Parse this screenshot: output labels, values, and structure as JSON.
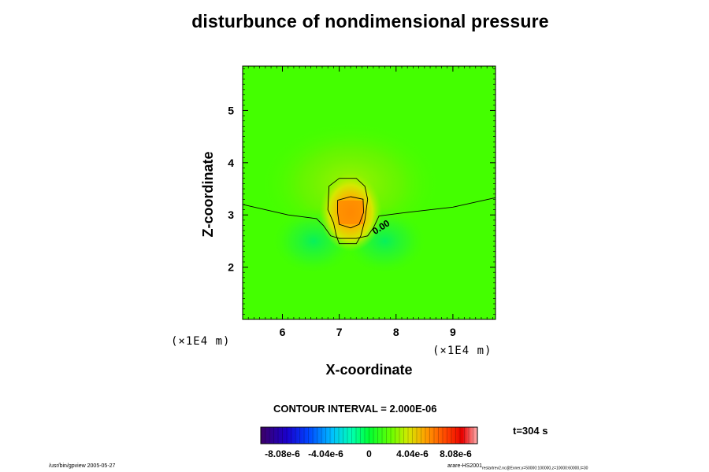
{
  "chart_data": {
    "type": "heatmap",
    "title": "disturbunce of nondimensional pressure",
    "xlabel": "X-coordinate",
    "ylabel": "Z-coordinate",
    "x_unit": "(×1E4 m)",
    "z_unit": "(×1E4 m)",
    "x_ticks": [
      6,
      7,
      8,
      9
    ],
    "y_ticks": [
      2,
      3,
      4,
      5
    ],
    "xlim": [
      5.3,
      9.75
    ],
    "ylim": [
      1.0,
      5.85
    ],
    "contour_interval_text": "CONTOUR INTERVAL = 2.000E-06",
    "contour_label": "0.00",
    "time_text": "t=304 s",
    "colorbar": {
      "min": -1.01e-05,
      "max": 1.01e-05,
      "tick_values": [
        -8.08e-06,
        -4.04e-06,
        0,
        4.04e-06,
        8.08e-06
      ],
      "tick_labels": [
        "-8.08e-6",
        "-4.04e-6",
        "0",
        "4.04e-6",
        "8.08e-6"
      ]
    },
    "field_features": [
      {
        "kind": "positive-peak",
        "x": 7.2,
        "z": 3.05,
        "value": 4.5e-06
      },
      {
        "kind": "negative-lobe",
        "x": 6.55,
        "z": 2.5,
        "value": -1.2e-06
      },
      {
        "kind": "negative-lobe",
        "x": 7.8,
        "z": 2.5,
        "value": -1.2e-06
      },
      {
        "kind": "weak-positive-dome",
        "x": 7.2,
        "z": 3.6,
        "value": 1e-06
      }
    ],
    "contours": [
      {
        "level": 0,
        "points": [
          [
            5.3,
            3.2
          ],
          [
            6.1,
            3.0
          ],
          [
            6.6,
            2.93
          ],
          [
            6.72,
            2.8
          ],
          [
            6.85,
            2.6
          ],
          [
            7.0,
            2.55
          ],
          [
            7.3,
            2.55
          ],
          [
            7.5,
            2.6
          ],
          [
            7.6,
            2.75
          ],
          [
            7.7,
            2.98
          ],
          [
            8.2,
            3.05
          ],
          [
            9.0,
            3.15
          ],
          [
            9.75,
            3.33
          ]
        ]
      },
      {
        "level": 2e-06,
        "points": [
          [
            7.0,
            3.7
          ],
          [
            7.3,
            3.7
          ],
          [
            7.45,
            3.55
          ],
          [
            7.5,
            3.3
          ],
          [
            7.45,
            2.9
          ],
          [
            7.38,
            2.6
          ],
          [
            7.3,
            2.45
          ],
          [
            7.0,
            2.45
          ],
          [
            6.95,
            2.6
          ],
          [
            6.9,
            2.85
          ],
          [
            6.8,
            3.1
          ],
          [
            6.82,
            3.55
          ],
          [
            7.0,
            3.7
          ]
        ]
      },
      {
        "level": 4e-06,
        "points": [
          [
            6.97,
            3.28
          ],
          [
            7.2,
            3.35
          ],
          [
            7.42,
            3.3
          ],
          [
            7.43,
            3.05
          ],
          [
            7.35,
            2.82
          ],
          [
            7.2,
            2.75
          ],
          [
            7.0,
            2.82
          ],
          [
            6.97,
            3.05
          ],
          [
            6.97,
            3.28
          ]
        ]
      }
    ]
  },
  "footer": {
    "left": "/usr/bin/gpview 2005-05-27",
    "right_main": "arare-HS2001",
    "right_sub": "restartrev2.nc@Exner,x=50000:100000,z=10000:60000,t=30"
  }
}
